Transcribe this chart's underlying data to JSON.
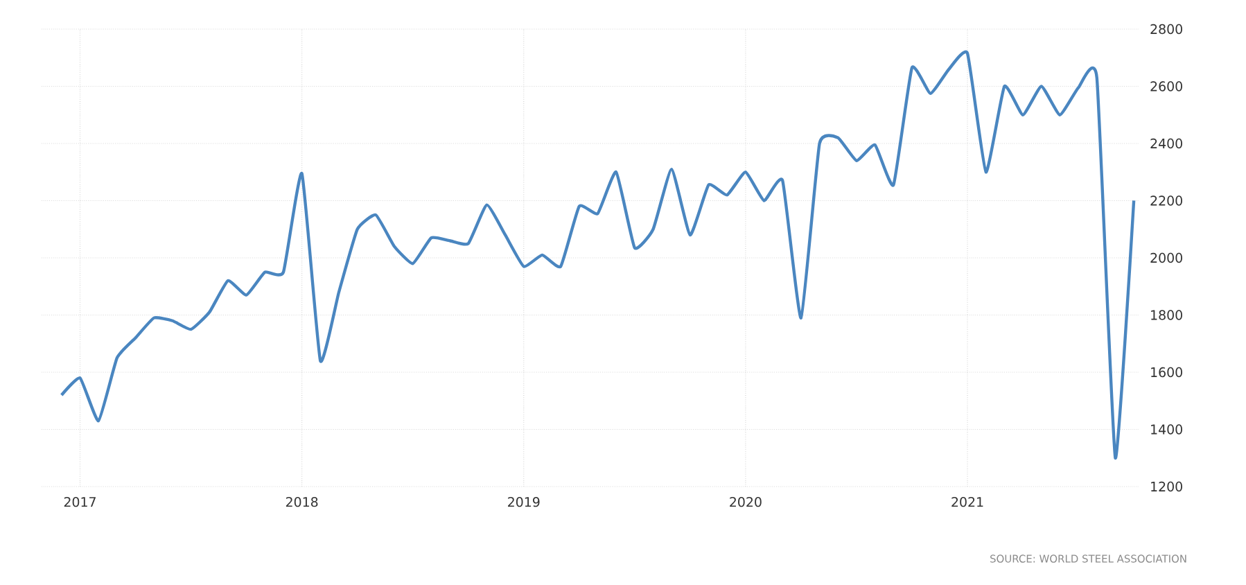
{
  "chart_data": {
    "type": "line",
    "x": [
      "2016-12",
      "2017-01",
      "2017-02",
      "2017-03",
      "2017-04",
      "2017-05",
      "2017-06",
      "2017-07",
      "2017-08",
      "2017-09",
      "2017-10",
      "2017-11",
      "2017-12",
      "2018-01",
      "2018-02",
      "2018-03",
      "2018-04",
      "2018-05",
      "2018-06",
      "2018-07",
      "2018-08",
      "2018-09",
      "2018-10",
      "2018-11",
      "2018-12",
      "2019-01",
      "2019-02",
      "2019-03",
      "2019-04",
      "2019-05",
      "2019-06",
      "2019-07",
      "2019-08",
      "2019-09",
      "2019-10",
      "2019-11",
      "2019-12",
      "2020-01",
      "2020-02",
      "2020-03",
      "2020-04",
      "2020-05",
      "2020-06",
      "2020-07",
      "2020-08",
      "2020-09",
      "2020-10",
      "2020-11",
      "2020-12",
      "2021-01",
      "2021-02",
      "2021-03",
      "2021-04",
      "2021-05",
      "2021-06",
      "2021-07",
      "2021-08",
      "2021-09",
      "2021-10"
    ],
    "series": [
      {
        "color": "#4a86c0",
        "values": [
          1520,
          1580,
          1430,
          1650,
          1720,
          1790,
          1780,
          1750,
          1810,
          1920,
          1870,
          1950,
          1950,
          2295,
          1640,
          1880,
          2100,
          2150,
          2040,
          1980,
          2070,
          2060,
          2050,
          2185,
          2080,
          1970,
          2010,
          1970,
          2180,
          2155,
          2300,
          2035,
          2100,
          2310,
          2080,
          2255,
          2220,
          2300,
          2200,
          2270,
          1790,
          2400,
          2420,
          2340,
          2395,
          2255,
          2665,
          2575,
          2660,
          2715,
          2300,
          2600,
          2500,
          2600,
          2500,
          2595,
          2630,
          1300,
          2200
        ]
      }
    ],
    "xlim": [
      "2016-10-29",
      "2021-10-10"
    ],
    "xticks": [
      "2017",
      "2018",
      "2019",
      "2020",
      "2021"
    ],
    "ylim": [
      1200,
      2800
    ],
    "yticks": [
      1200,
      1400,
      1600,
      1800,
      2000,
      2200,
      2400,
      2600,
      2800
    ],
    "grid": true,
    "marker": "none",
    "line_style": "solid",
    "annotations": [
      "SOURCE: WORLD STEEL ASSOCIATION"
    ]
  }
}
